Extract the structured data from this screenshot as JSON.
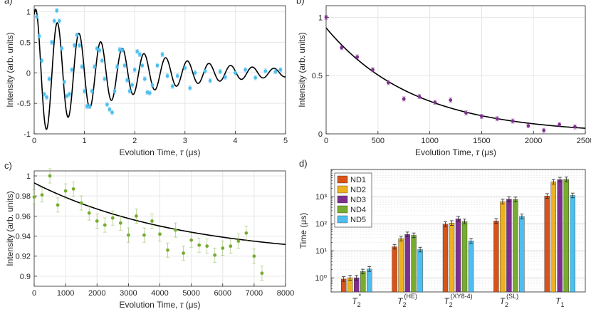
{
  "chart_data": [
    {
      "panel_label": "a)",
      "type": "scatter",
      "xlabel": "Evolution Time, τ (μs)",
      "ylabel": "Intensity (arb. units)",
      "xlim": [
        0,
        5
      ],
      "ylim": [
        -1,
        1.1
      ],
      "xticks": [
        0,
        1,
        2,
        3,
        4,
        5
      ],
      "yticks": [
        -1,
        -0.5,
        0,
        0.5,
        1
      ],
      "grid": true,
      "marker_color": "#4dbeee",
      "fit_color": "#000000",
      "fit_model": "damped cosine",
      "fit_params": {
        "A": 1.06,
        "T2star_us": 1.8,
        "freq_MHz": 2.32,
        "phase_rad": -0.45,
        "offset": 0.0
      },
      "series": [
        {
          "values_xy": [
            [
              0.05,
              0.92
            ],
            [
              0.1,
              0.6
            ],
            [
              0.15,
              0.2
            ],
            [
              0.2,
              -0.35
            ],
            [
              0.25,
              -0.4
            ],
            [
              0.3,
              -0.1
            ],
            [
              0.35,
              0.5
            ],
            [
              0.4,
              0.85
            ],
            [
              0.45,
              1.02
            ],
            [
              0.5,
              0.85
            ],
            [
              0.55,
              0.4
            ],
            [
              0.6,
              -0.15
            ],
            [
              0.65,
              -0.38
            ],
            [
              0.7,
              -0.35
            ],
            [
              0.75,
              0.05
            ],
            [
              0.8,
              0.45
            ],
            [
              0.85,
              0.62
            ],
            [
              0.9,
              0.45
            ],
            [
              0.95,
              0.1
            ],
            [
              1.0,
              -0.3
            ],
            [
              1.05,
              -0.55
            ],
            [
              1.1,
              -0.55
            ],
            [
              1.15,
              -0.3
            ],
            [
              1.2,
              0.1
            ],
            [
              1.25,
              0.4
            ],
            [
              1.3,
              0.37
            ],
            [
              1.35,
              0.2
            ],
            [
              1.4,
              -0.1
            ],
            [
              1.45,
              -0.52
            ],
            [
              1.5,
              -0.6
            ],
            [
              1.55,
              -0.65
            ],
            [
              1.6,
              -0.3
            ],
            [
              1.65,
              0.1
            ],
            [
              1.7,
              0.38
            ],
            [
              1.75,
              0.37
            ],
            [
              1.8,
              0.12
            ],
            [
              1.85,
              -0.12
            ],
            [
              1.9,
              -0.3
            ],
            [
              1.95,
              -0.2
            ],
            [
              2.0,
              0.05
            ],
            [
              2.05,
              0.35
            ],
            [
              2.1,
              0.3
            ],
            [
              2.15,
              0.12
            ],
            [
              2.2,
              -0.1
            ],
            [
              2.25,
              -0.32
            ],
            [
              2.3,
              -0.33
            ],
            [
              2.35,
              -0.2
            ],
            [
              2.45,
              0.12
            ],
            [
              2.55,
              0.3
            ],
            [
              2.65,
              -0.05
            ],
            [
              2.75,
              -0.22
            ],
            [
              2.85,
              -0.05
            ],
            [
              3.0,
              0.08
            ],
            [
              3.1,
              -0.25
            ],
            [
              3.2,
              0.0
            ],
            [
              3.4,
              0.03
            ],
            [
              3.5,
              -0.13
            ],
            [
              3.7,
              0.02
            ],
            [
              3.8,
              -0.07
            ],
            [
              4.0,
              0.0
            ],
            [
              4.2,
              0.05
            ],
            [
              4.4,
              -0.08
            ],
            [
              4.6,
              0.03
            ],
            [
              4.8,
              0.02
            ],
            [
              4.9,
              0.05
            ]
          ]
        }
      ]
    },
    {
      "panel_label": "b)",
      "type": "scatter",
      "xlabel": "Evolution Time, τ (μs)",
      "ylabel": "Intensity (arb. units)",
      "xlim": [
        0,
        2500
      ],
      "ylim": [
        0,
        1.1
      ],
      "xticks": [
        0,
        500,
        1000,
        1500,
        2000,
        2500
      ],
      "yticks": [
        0,
        0.5,
        1
      ],
      "grid": true,
      "marker_color": "#7e2f8e",
      "fit_color": "#000000",
      "fit_model": "exponential decay",
      "fit_params": {
        "A": 0.91,
        "T_us": 850,
        "offset": 0.0
      },
      "series": [
        {
          "values_xy": [
            [
              0,
              1.0
            ],
            [
              150,
              0.74
            ],
            [
              300,
              0.66
            ],
            [
              450,
              0.55
            ],
            [
              600,
              0.44
            ],
            [
              750,
              0.3
            ],
            [
              900,
              0.32
            ],
            [
              1050,
              0.27
            ],
            [
              1200,
              0.29
            ],
            [
              1350,
              0.18
            ],
            [
              1500,
              0.15
            ],
            [
              1650,
              0.13
            ],
            [
              1800,
              0.11
            ],
            [
              1950,
              0.07
            ],
            [
              2100,
              0.03
            ],
            [
              2250,
              0.08
            ],
            [
              2400,
              0.06
            ]
          ]
        }
      ]
    },
    {
      "panel_label": "c)",
      "type": "scatter",
      "xlabel": "Evolution Time, τ (μs)",
      "ylabel": "Intensity (arb. units)",
      "xlim": [
        0,
        8000
      ],
      "ylim": [
        0.89,
        1.005
      ],
      "xticks": [
        0,
        1000,
        2000,
        3000,
        4000,
        5000,
        6000,
        7000,
        8000
      ],
      "yticks": [
        0.9,
        0.92,
        0.94,
        0.96,
        0.98,
        1
      ],
      "grid": true,
      "marker_color": "#77ac30",
      "fit_color": "#000000",
      "fit_model": "exponential decay",
      "fit_params": {
        "A": 0.075,
        "T_us": 4700,
        "offset": 0.918
      },
      "series": [
        {
          "values_xy": [
            [
              0,
              0.979
            ],
            [
              250,
              0.981
            ],
            [
              500,
              1.0
            ],
            [
              750,
              0.971
            ],
            [
              1000,
              0.985
            ],
            [
              1250,
              0.987
            ],
            [
              1500,
              0.973
            ],
            [
              1750,
              0.963
            ],
            [
              2000,
              0.955
            ],
            [
              2250,
              0.951
            ],
            [
              2500,
              0.958
            ],
            [
              2750,
              0.953
            ],
            [
              3000,
              0.941
            ],
            [
              3250,
              0.96
            ],
            [
              3500,
              0.941
            ],
            [
              3750,
              0.955
            ],
            [
              4000,
              0.942
            ],
            [
              4250,
              0.926
            ],
            [
              4500,
              0.946
            ],
            [
              4750,
              0.923
            ],
            [
              5000,
              0.936
            ],
            [
              5250,
              0.931
            ],
            [
              5500,
              0.93
            ],
            [
              5750,
              0.921
            ],
            [
              6000,
              0.928
            ],
            [
              6250,
              0.93
            ],
            [
              6500,
              0.935
            ],
            [
              6750,
              0.943
            ],
            [
              7000,
              0.92
            ],
            [
              7250,
              0.903
            ]
          ]
        }
      ]
    },
    {
      "panel_label": "d)",
      "type": "bar",
      "yscale": "log",
      "ylabel": "Time (μs)",
      "ylim": [
        0.3,
        10000
      ],
      "ytick_labels": [
        "10⁰",
        "10¹",
        "10²",
        "10³"
      ],
      "grid": true,
      "legend_position": "top-left",
      "categories": [
        {
          "base": "T",
          "sub": "2",
          "sup": "*"
        },
        {
          "base": "T",
          "sub": "2",
          "sup": "(HE)"
        },
        {
          "base": "T",
          "sub": "2",
          "sup": "(XY8-4)"
        },
        {
          "base": "T",
          "sub": "2",
          "sup": "(SL)"
        },
        {
          "base": "T",
          "sub": "1",
          "sup": ""
        }
      ],
      "series": [
        {
          "name": "ND1",
          "color": "#d95319",
          "values": [
            0.9,
            14,
            95,
            125,
            1050
          ]
        },
        {
          "name": "ND2",
          "color": "#edb120",
          "values": [
            1.0,
            28,
            105,
            650,
            3500
          ]
        },
        {
          "name": "ND3",
          "color": "#7e2f8e",
          "values": [
            1.0,
            40,
            150,
            800,
            4200
          ]
        },
        {
          "name": "ND4",
          "color": "#77ac30",
          "values": [
            1.7,
            37,
            120,
            780,
            4300
          ]
        },
        {
          "name": "ND5",
          "color": "#4dbeee",
          "values": [
            2.1,
            11,
            23,
            185,
            1100
          ]
        }
      ]
    }
  ]
}
